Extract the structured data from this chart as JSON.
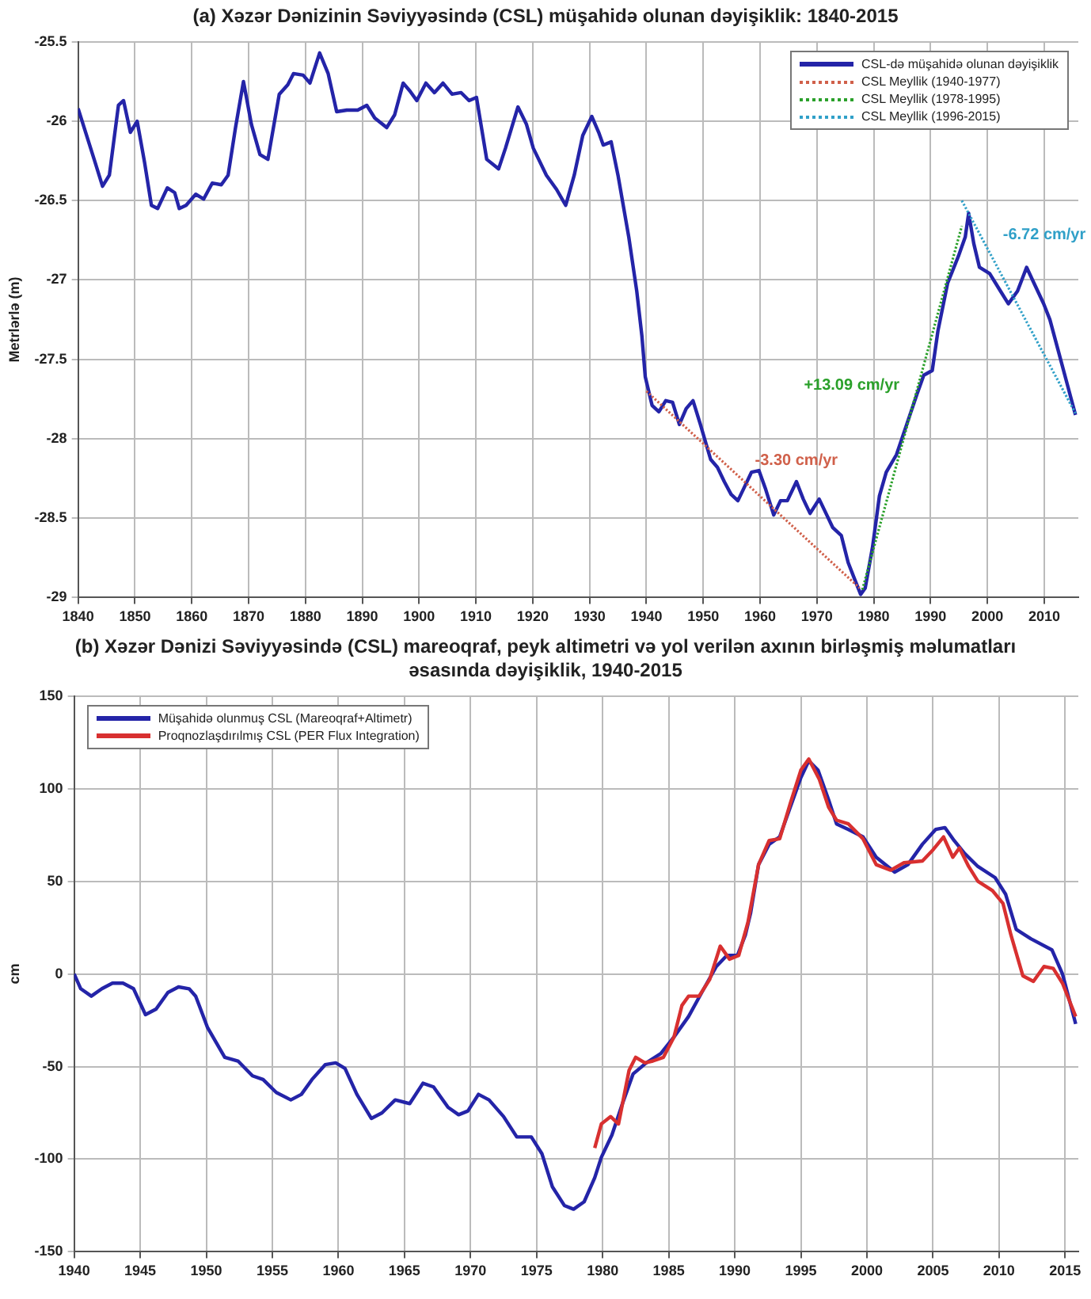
{
  "chart_data": [
    {
      "type": "line",
      "title": "(a) Xəzər Dənizinin Səviyyəsində (CSL) müşahidə olunan dəyişiklik: 1840-2015",
      "ylabel": "Metrlərlə (m)",
      "xlim": [
        1840,
        2016
      ],
      "xticks": [
        1840,
        1850,
        1860,
        1870,
        1880,
        1890,
        1900,
        1910,
        1920,
        1930,
        1940,
        1950,
        1960,
        1970,
        1980,
        1990,
        2000,
        2010
      ],
      "ylim": [
        -29,
        -25.5
      ],
      "yticks": [
        -29,
        -28.5,
        -28,
        -27.5,
        -27,
        -26.5,
        -26,
        -25.5
      ],
      "grid": true,
      "legend": "top right",
      "marker": "none",
      "series": [
        {
          "name": "CSL-də müşahidə olunan dəyişiklik",
          "color": "#2424a8",
          "line_style": "solid",
          "x": [
            1840,
            1843,
            1844.3,
            1845.5,
            1847.1,
            1848,
            1849.2,
            1850.4,
            1851.7,
            1852.9,
            1854,
            1855.7,
            1857,
            1857.8,
            1859,
            1860.7,
            1862.1,
            1863.6,
            1865.2,
            1866.4,
            1867.7,
            1869.1,
            1870.5,
            1872,
            1873.4,
            1875.4,
            1876.9,
            1877.9,
            1879.6,
            1880.8,
            1882.5,
            1884,
            1885.5,
            1887.3,
            1889.2,
            1890.8,
            1892.2,
            1894.3,
            1895.7,
            1897.2,
            1898.4,
            1899.6,
            1901.2,
            1902.7,
            1904.2,
            1905.8,
            1907.4,
            1908.8,
            1910.1,
            1911.9,
            1914,
            1915.2,
            1917.4,
            1918.9,
            1920.1,
            1922.4,
            1924.2,
            1925.8,
            1927.3,
            1928.8,
            1930.4,
            1931.6,
            1932.4,
            1933.8,
            1935,
            1936.9,
            1938.3,
            1939.2,
            1939.8,
            1941,
            1942.2,
            1943.4,
            1944.6,
            1945.8,
            1947,
            1948.2,
            1949.5,
            1951.3,
            1952.5,
            1953.7,
            1954.9,
            1956.1,
            1957.3,
            1958.5,
            1959.8,
            1961,
            1962.4,
            1963.6,
            1964.8,
            1966.4,
            1967.6,
            1968.8,
            1970.4,
            1971.6,
            1972.8,
            1974.3,
            1975.5,
            1976.7,
            1977.7,
            1978.5,
            1979.8,
            1981,
            1982.2,
            1984,
            1985.8,
            1987.6,
            1988.8,
            1990.3,
            1991.3,
            1993,
            1994.9,
            1996.1,
            1996.7,
            1997.6,
            1998.6,
            2000.4,
            2002.3,
            2003.7,
            2005.3,
            2006.9,
            2008.2,
            2009.9,
            2011,
            2012.5,
            2014,
            2015.5
          ],
          "values": [
            -25.92,
            -26.26,
            -26.41,
            -26.34,
            -25.9,
            -25.87,
            -26.07,
            -26.0,
            -26.26,
            -26.53,
            -26.55,
            -26.42,
            -26.45,
            -26.55,
            -26.53,
            -26.46,
            -26.49,
            -26.39,
            -26.4,
            -26.34,
            -26.04,
            -25.75,
            -26.02,
            -26.21,
            -26.24,
            -25.83,
            -25.77,
            -25.7,
            -25.71,
            -25.76,
            -25.57,
            -25.7,
            -25.94,
            -25.93,
            -25.93,
            -25.9,
            -25.98,
            -26.04,
            -25.96,
            -25.76,
            -25.81,
            -25.87,
            -25.76,
            -25.82,
            -25.76,
            -25.83,
            -25.82,
            -25.87,
            -25.85,
            -26.24,
            -26.3,
            -26.17,
            -25.91,
            -26.02,
            -26.17,
            -26.34,
            -26.43,
            -26.53,
            -26.34,
            -26.09,
            -25.97,
            -26.07,
            -26.15,
            -26.13,
            -26.34,
            -26.73,
            -27.07,
            -27.35,
            -27.61,
            -27.79,
            -27.83,
            -27.76,
            -27.77,
            -27.91,
            -27.81,
            -27.76,
            -27.91,
            -28.13,
            -28.18,
            -28.27,
            -28.35,
            -28.39,
            -28.3,
            -28.21,
            -28.2,
            -28.32,
            -28.48,
            -28.39,
            -28.39,
            -28.27,
            -28.38,
            -28.47,
            -28.38,
            -28.47,
            -28.56,
            -28.61,
            -28.78,
            -28.89,
            -28.98,
            -28.94,
            -28.68,
            -28.36,
            -28.21,
            -28.1,
            -27.91,
            -27.72,
            -27.6,
            -27.57,
            -27.32,
            -27.02,
            -26.85,
            -26.73,
            -26.58,
            -26.77,
            -26.92,
            -26.96,
            -27.07,
            -27.15,
            -27.07,
            -26.92,
            -27.02,
            -27.15,
            -27.25,
            -27.45,
            -27.65,
            -27.85
          ]
        },
        {
          "name": "CSL Meyllik (1940-1977)",
          "color": "#d0604a",
          "line_style": "dotted",
          "x": [
            1940,
            1977.5
          ],
          "values": [
            -27.7,
            -28.94
          ]
        },
        {
          "name": "CSL Meyllik (1978-1995)",
          "color": "#2aa02a",
          "line_style": "dotted",
          "x": [
            1978,
            1995.5
          ],
          "values": [
            -28.95,
            -26.66
          ]
        },
        {
          "name": "CSL Meyllik (1996-2015)",
          "color": "#30a0c8",
          "line_style": "dotted",
          "x": [
            1995.5,
            2015.5
          ],
          "values": [
            -26.5,
            -27.84
          ]
        }
      ],
      "annotations": [
        "-3.30 cm/yr",
        "+13.09 cm/yr",
        "-6.72 cm/yr"
      ]
    },
    {
      "type": "line",
      "title": "(b) Xəzər Dənizi Səviyyəsində (CSL) mareoqraf, peyk altimetri və yol verilən axının birləşmiş  məlumatları əsasında dəyişiklik, 1940-2015",
      "ylabel": "cm",
      "xlim": [
        1940,
        2016
      ],
      "xticks": [
        1940,
        1945,
        1950,
        1955,
        1960,
        1965,
        1970,
        1975,
        1980,
        1985,
        1990,
        1995,
        2000,
        2005,
        2010,
        2015
      ],
      "ylim": [
        -150,
        150
      ],
      "yticks": [
        -150,
        -100,
        -50,
        0,
        50,
        100,
        150
      ],
      "grid": true,
      "legend": "top left",
      "marker": "none",
      "line_style": "solid",
      "series": [
        {
          "name": "Müşahidə olunmuş CSL (Mareoqraf+Altimetr)",
          "color": "#2424a8",
          "x": [
            1940,
            1940.5,
            1941.3,
            1942.1,
            1942.9,
            1943.7,
            1944.5,
            1945.4,
            1946.2,
            1947.1,
            1947.9,
            1948.7,
            1949.2,
            1950.1,
            1951.4,
            1952.4,
            1953.5,
            1954.3,
            1955.3,
            1956.4,
            1957.2,
            1958,
            1959,
            1959.8,
            1960.5,
            1961.4,
            1962.5,
            1963.3,
            1964.3,
            1965.4,
            1966.4,
            1967.2,
            1968.3,
            1969.1,
            1969.8,
            1970.6,
            1971.4,
            1972.5,
            1973.5,
            1974.6,
            1975.4,
            1976.2,
            1977.1,
            1977.8,
            1978.6,
            1979.4,
            1979.9,
            1980.7,
            1981.5,
            1982.3,
            1983.3,
            1984.4,
            1985.4,
            1986.5,
            1987.5,
            1988.6,
            1989.4,
            1990.2,
            1990.8,
            1991.2,
            1991.8,
            1992.6,
            1993.4,
            1994.2,
            1995,
            1995.6,
            1996.3,
            1997.1,
            1997.7,
            1998.6,
            1999.7,
            2000.7,
            2002.1,
            2003.1,
            2004.2,
            2005.2,
            2005.9,
            2006.6,
            2007.4,
            2008.4,
            2009.7,
            2010.5,
            2011.3,
            2012.4,
            2014,
            2014.8,
            2015.8
          ],
          "values": [
            0,
            -8,
            -12,
            -8,
            -5,
            -5,
            -8,
            -22,
            -19,
            -10,
            -7,
            -8,
            -12,
            -29,
            -45,
            -47,
            -55,
            -57,
            -64,
            -68,
            -65,
            -57,
            -49,
            -48,
            -51,
            -65,
            -78,
            -75,
            -68,
            -70,
            -59,
            -61,
            -72,
            -76,
            -74,
            -65,
            -68,
            -77,
            -88,
            -88,
            -97,
            -115,
            -125,
            -127,
            -123,
            -110,
            -99,
            -87,
            -70,
            -54,
            -48,
            -43,
            -34,
            -23,
            -10,
            4,
            10,
            10,
            21,
            33,
            59,
            70,
            74,
            90,
            106,
            115,
            110,
            94,
            81,
            78,
            74,
            63,
            55,
            59,
            70,
            78,
            79,
            72,
            65,
            58,
            52,
            43,
            24,
            19,
            13,
            0,
            -27
          ]
        },
        {
          "name": "Proqnozlaşdırılmış CSL (PER Flux Integration)",
          "color": "#d83030",
          "x": [
            1979.4,
            1979.9,
            1980.6,
            1981.2,
            1982,
            1982.5,
            1983.2,
            1983.8,
            1984.6,
            1985.4,
            1986,
            1986.5,
            1987.3,
            1988.1,
            1988.9,
            1989.6,
            1990.3,
            1991,
            1991.8,
            1992.6,
            1993.4,
            1994.2,
            1995,
            1995.6,
            1996.4,
            1997.1,
            1997.7,
            1998.6,
            1999.7,
            2000.7,
            2001.8,
            2002.8,
            2004.2,
            2005,
            2005.8,
            2006.5,
            2007,
            2007.7,
            2008.4,
            2009.5,
            2010.3,
            2010.9,
            2011.8,
            2012.6,
            2013.4,
            2014.1,
            2014.8,
            2015.8
          ],
          "values": [
            -94,
            -81,
            -77,
            -81,
            -52,
            -45,
            -48,
            -47,
            -45,
            -34,
            -17,
            -12,
            -12,
            -3,
            15,
            8,
            10,
            28,
            59,
            72,
            73,
            92,
            110,
            116,
            105,
            90,
            83,
            81,
            73,
            59,
            56,
            60,
            61,
            67,
            74,
            63,
            68,
            58,
            50,
            45,
            38,
            21,
            -1,
            -4,
            4,
            3,
            -5,
            -23
          ]
        }
      ]
    }
  ]
}
